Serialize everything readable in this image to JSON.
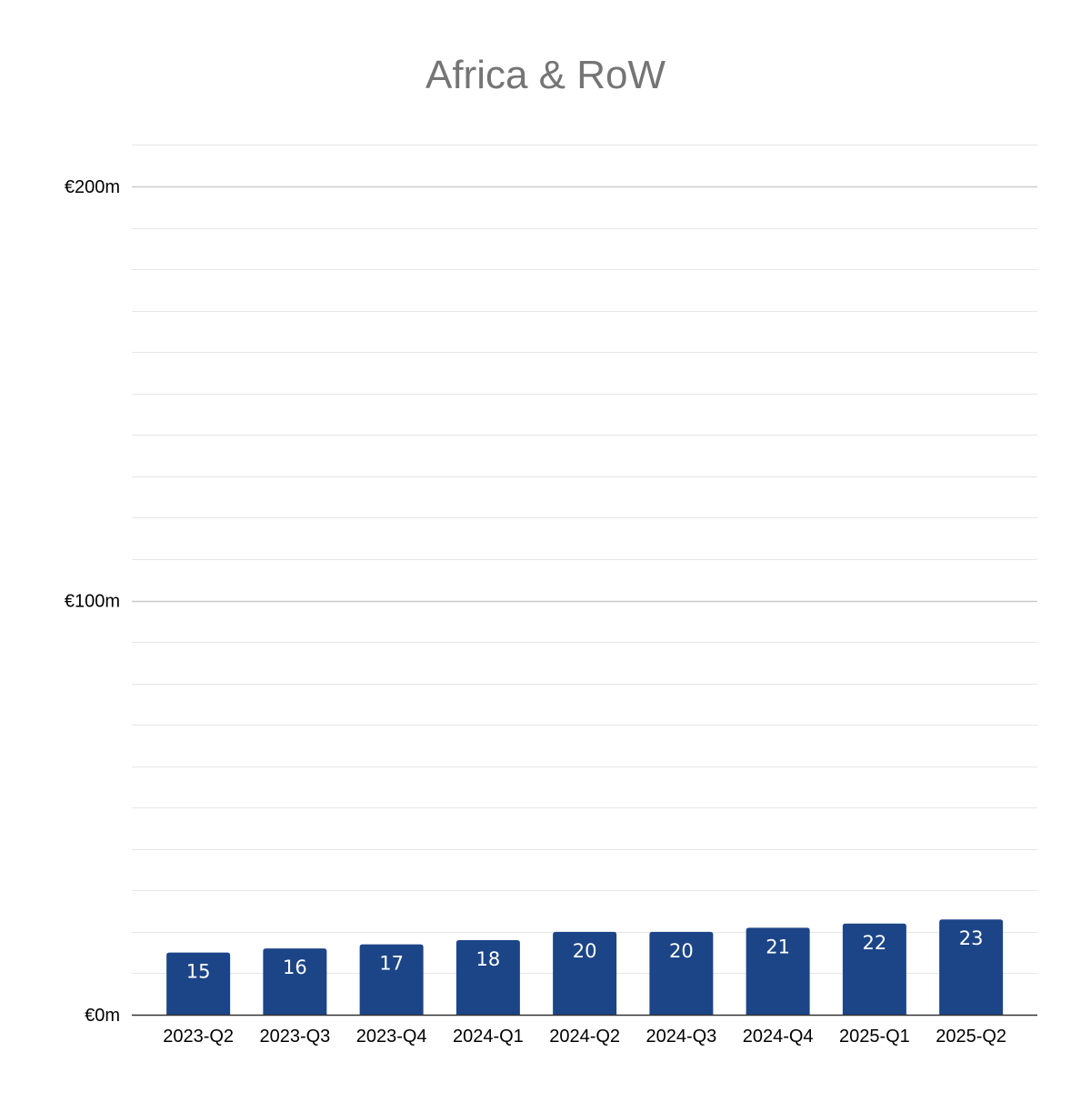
{
  "chart_data": {
    "type": "bar",
    "title": "Africa & RoW",
    "xlabel": "",
    "ylabel": "",
    "categories": [
      "2023-Q2",
      "2023-Q3",
      "2023-Q4",
      "2024-Q1",
      "2024-Q2",
      "2024-Q3",
      "2024-Q4",
      "2025-Q1",
      "2025-Q2"
    ],
    "series": [
      {
        "values": [
          15,
          16,
          17,
          18,
          20,
          20,
          21,
          22,
          23
        ],
        "data_labels": [
          "15",
          "16",
          "17",
          "18",
          "20",
          "20",
          "21",
          "22",
          "23"
        ],
        "color": "#1c4587"
      }
    ],
    "ylim": [
      0,
      210
    ],
    "yticks": [
      0,
      100,
      200
    ],
    "ytick_labels": [
      "€0m",
      "€100m",
      "€200m"
    ],
    "minor_gridline_step": 10,
    "grid": true,
    "legend": "none",
    "colors": {
      "bar": "#1c4587",
      "title": "#757575",
      "major_grid": "#cccccc",
      "minor_grid": "#e6e6e6",
      "axis": "#333333"
    }
  }
}
